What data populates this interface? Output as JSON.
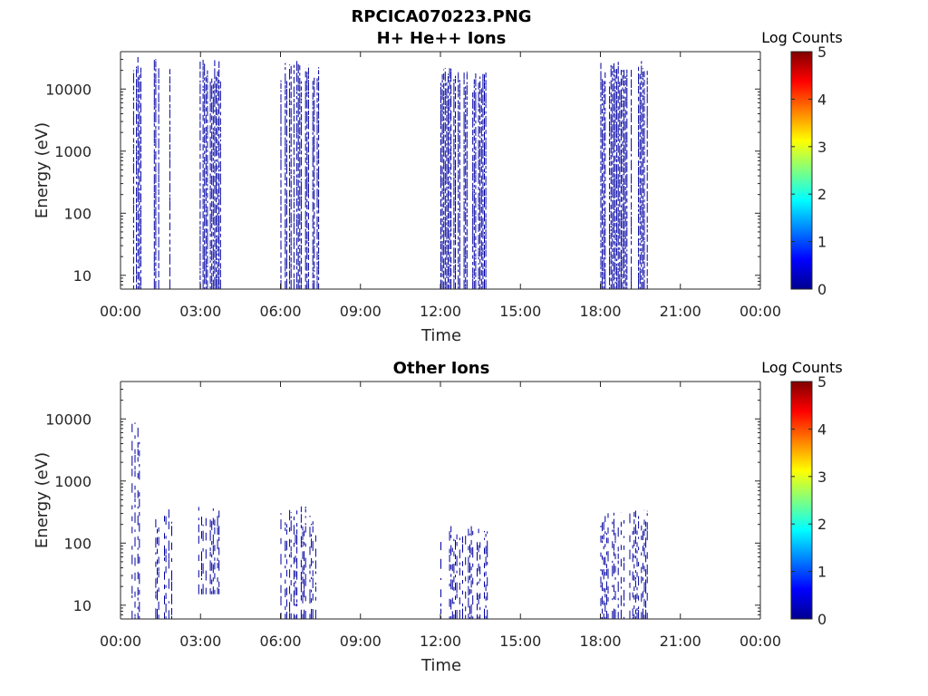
{
  "figure_title": "RPCICA070223.PNG",
  "chart_data": [
    {
      "type": "heatmap",
      "title": "H+ He++ Ions",
      "xlabel": "Time",
      "ylabel": "Energy (eV)",
      "yscale": "log",
      "xlim_hours": [
        0,
        24
      ],
      "ylim": [
        6,
        40000
      ],
      "x_ticks": [
        "00:00",
        "03:00",
        "06:00",
        "09:00",
        "12:00",
        "15:00",
        "18:00",
        "21:00",
        "00:00"
      ],
      "y_ticks": [
        {
          "value": 10,
          "label": "10"
        },
        {
          "value": 100,
          "label": "100"
        },
        {
          "value": 1000,
          "label": "1000"
        },
        {
          "value": 10000,
          "label": "10000"
        }
      ],
      "colorbar": {
        "label": "Log Counts",
        "min": 0,
        "max": 5,
        "ticks": [
          "0",
          "1",
          "2",
          "3",
          "4",
          "5"
        ]
      },
      "grid": false,
      "bursts": [
        {
          "start": "00:25",
          "end": "00:45",
          "emin": 6,
          "emax": 35000,
          "log_counts": 0.1
        },
        {
          "start": "01:15",
          "end": "01:25",
          "emin": 6,
          "emax": 35000,
          "log_counts": 0.1
        },
        {
          "start": "01:50",
          "end": "02:00",
          "emin": 6,
          "emax": 30000,
          "log_counts": 0.1
        },
        {
          "start": "02:55",
          "end": "03:45",
          "emin": 6,
          "emax": 30000,
          "log_counts": 0.1
        },
        {
          "start": "06:00",
          "end": "07:25",
          "emin": 6,
          "emax": 30000,
          "log_counts": 0.1
        },
        {
          "start": "12:00",
          "end": "13:50",
          "emin": 6,
          "emax": 22000,
          "log_counts": 0.1
        },
        {
          "start": "18:00",
          "end": "19:45",
          "emin": 6,
          "emax": 30000,
          "log_counts": 0.1
        }
      ]
    },
    {
      "type": "heatmap",
      "title": "Other Ions",
      "xlabel": "Time",
      "ylabel": "Energy (eV)",
      "yscale": "log",
      "xlim_hours": [
        0,
        24
      ],
      "ylim": [
        6,
        40000
      ],
      "x_ticks": [
        "00:00",
        "03:00",
        "06:00",
        "09:00",
        "12:00",
        "15:00",
        "18:00",
        "21:00",
        "00:00"
      ],
      "y_ticks": [
        {
          "value": 10,
          "label": "10"
        },
        {
          "value": 100,
          "label": "100"
        },
        {
          "value": 1000,
          "label": "1000"
        },
        {
          "value": 10000,
          "label": "10000"
        }
      ],
      "colorbar": {
        "label": "Log Counts",
        "min": 0,
        "max": 5,
        "ticks": [
          "0",
          "1",
          "2",
          "3",
          "4",
          "5"
        ]
      },
      "grid": false,
      "bursts": [
        {
          "start": "00:25",
          "end": "00:45",
          "emin": 6,
          "emax": 9000,
          "log_counts": 0.1
        },
        {
          "start": "01:15",
          "end": "02:00",
          "emin": 6,
          "emax": 400,
          "log_counts": 0.1
        },
        {
          "start": "02:55",
          "end": "03:45",
          "emin": 15,
          "emax": 400,
          "log_counts": 0.1
        },
        {
          "start": "06:00",
          "end": "07:25",
          "emin": 6,
          "emax": 400,
          "log_counts": 0.1
        },
        {
          "start": "12:00",
          "end": "13:50",
          "emin": 6,
          "emax": 200,
          "log_counts": 0.1
        },
        {
          "start": "18:00",
          "end": "19:45",
          "emin": 6,
          "emax": 350,
          "log_counts": 0.1
        }
      ]
    }
  ]
}
